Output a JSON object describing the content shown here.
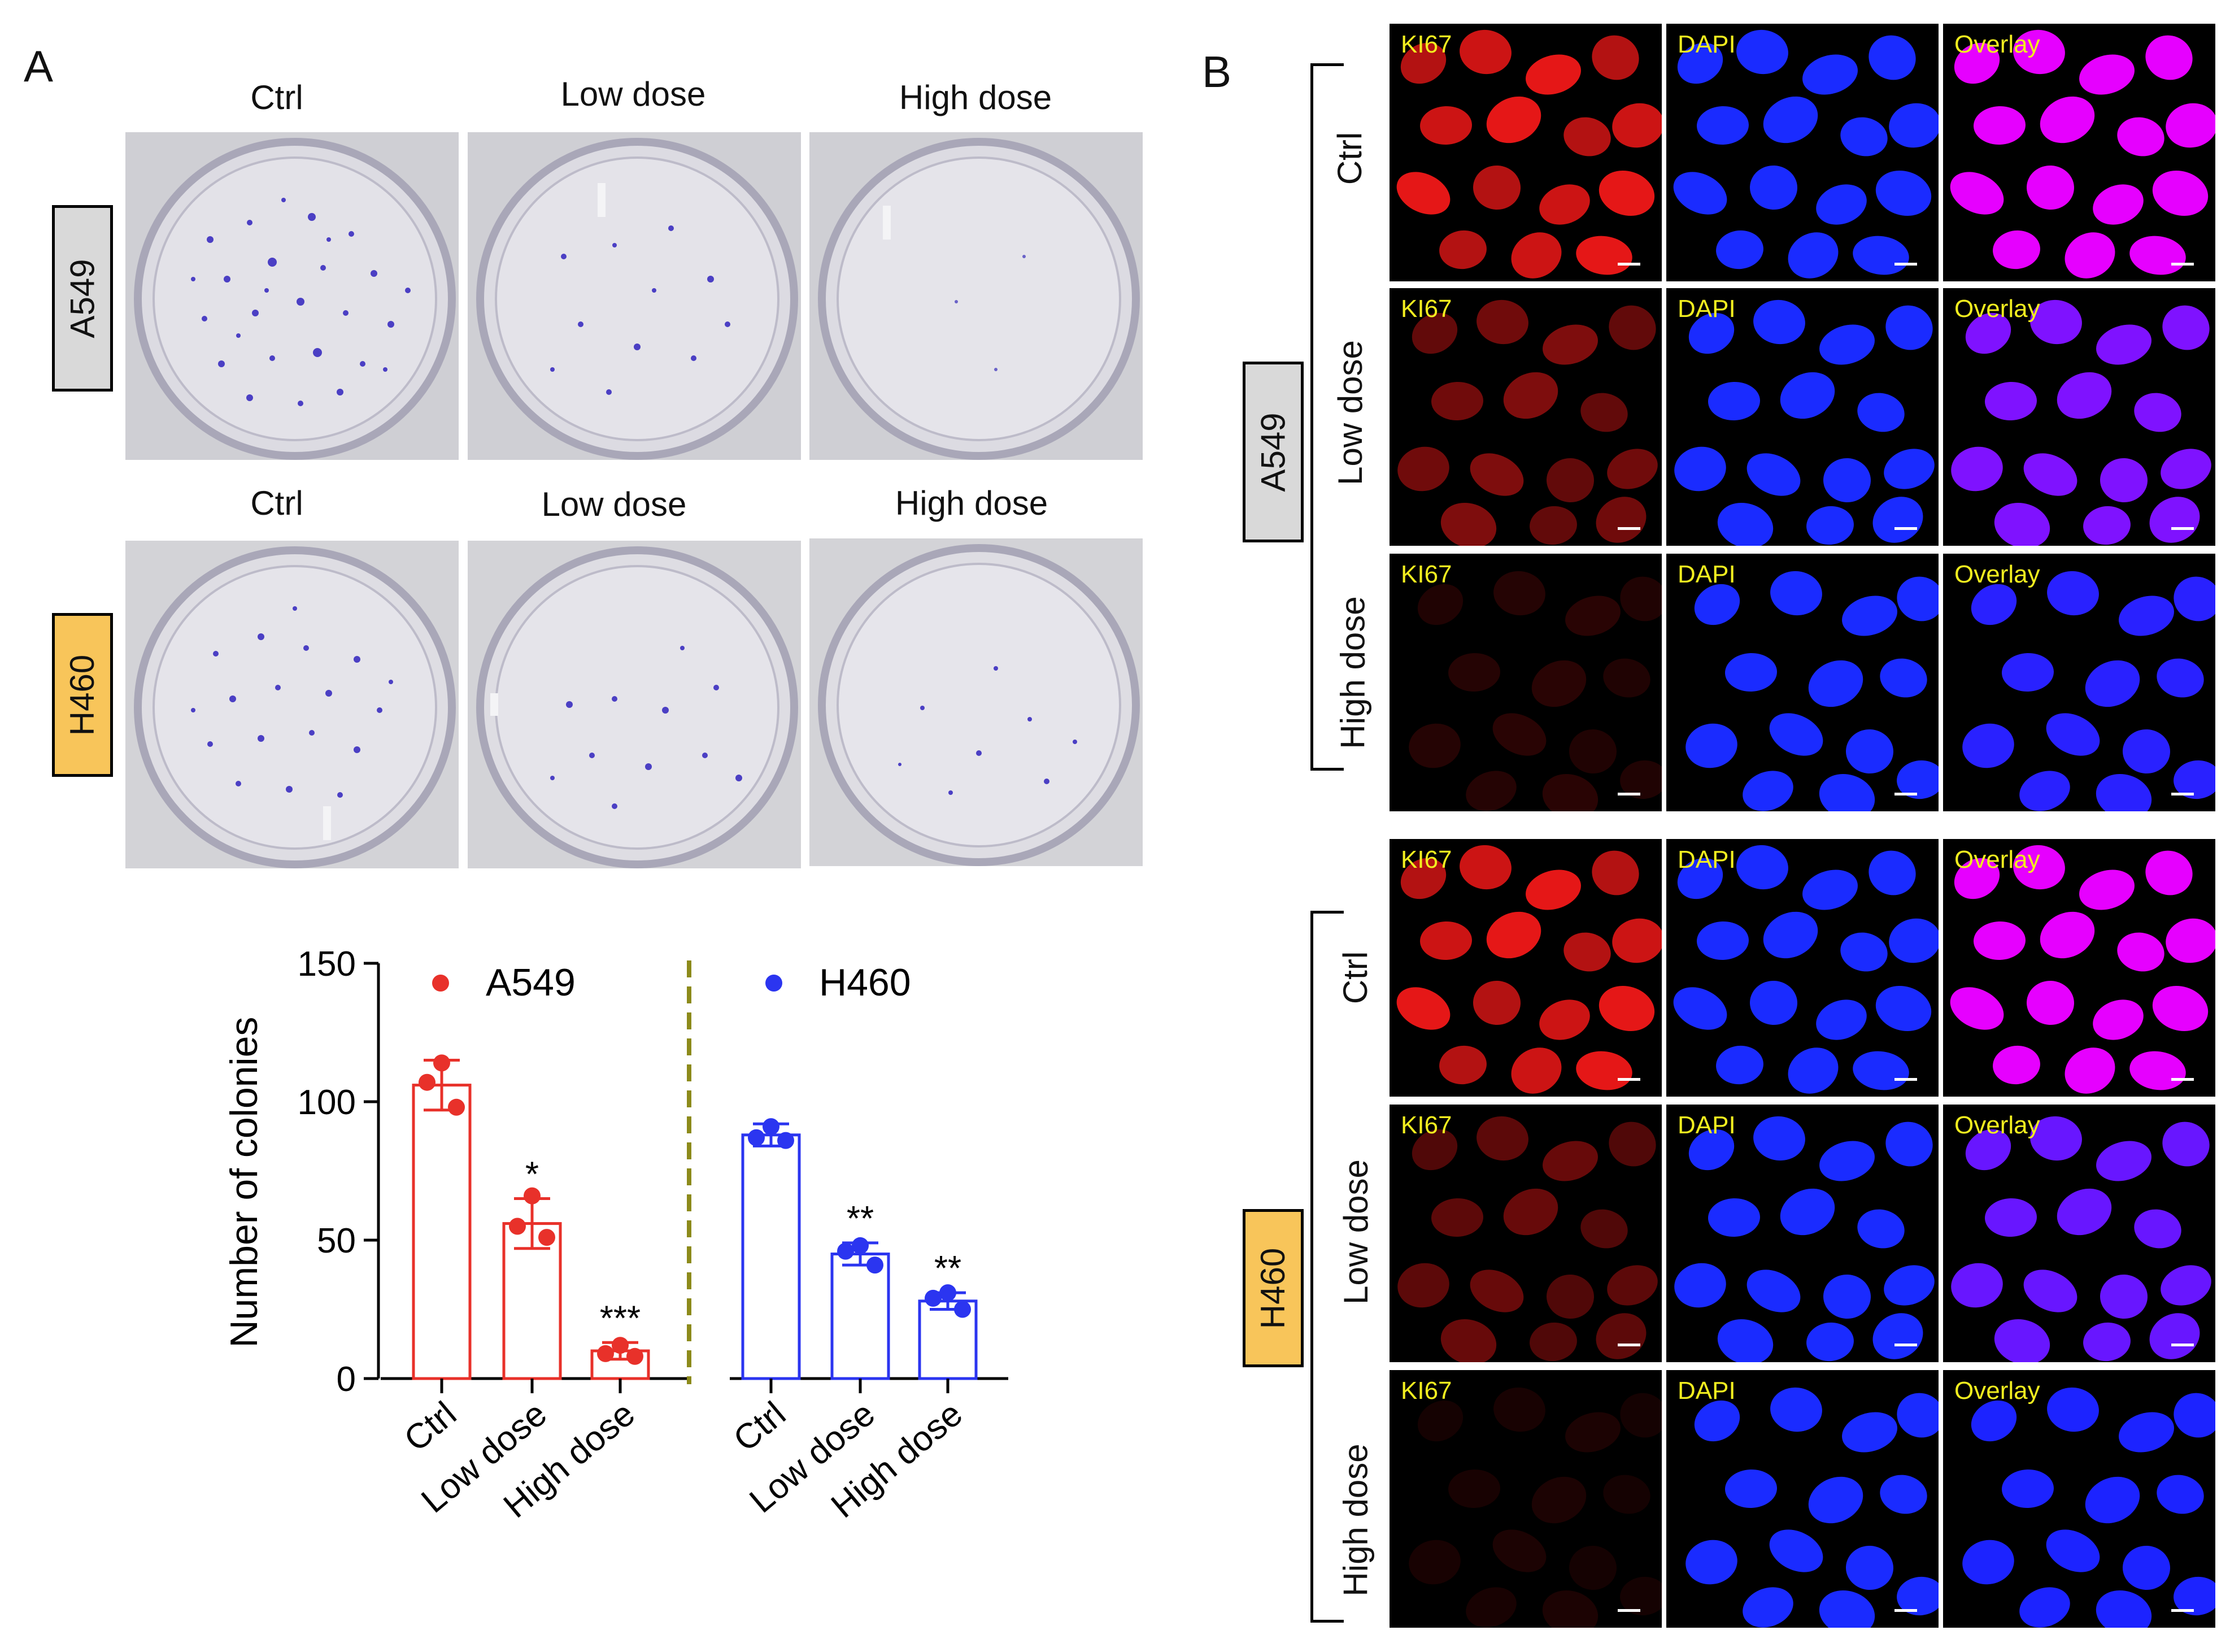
{
  "panel_a": {
    "letter": "A",
    "rows": [
      {
        "cell_line": "A549",
        "tag_color": "#d9d9d9",
        "columns": [
          "Ctrl",
          "Low dose",
          "High dose"
        ]
      },
      {
        "cell_line": "H460",
        "tag_color": "#f8c55a",
        "columns": [
          "Ctrl",
          "Low dose",
          "High dose"
        ]
      }
    ]
  },
  "panel_b": {
    "letter": "B",
    "channels": [
      "KI67",
      "DAPI",
      "Overlay"
    ],
    "groups": [
      {
        "cell_line": "A549",
        "tag_color": "#d9d9d9",
        "rows": [
          "Ctrl",
          "Low dose",
          "High dose"
        ]
      },
      {
        "cell_line": "H460",
        "tag_color": "#f8c55a",
        "rows": [
          "Ctrl",
          "Low dose",
          "High dose"
        ]
      }
    ]
  },
  "chart_data": {
    "type": "bar",
    "xlabel": "",
    "ylabel": "Number of  colonies",
    "ylim": [
      0,
      150
    ],
    "yticks": [
      0,
      50,
      100,
      150
    ],
    "legend_placement": "top",
    "groups": [
      {
        "name": "A549",
        "color": "#e8312a",
        "categories": [
          "Ctrl",
          "Low dose",
          "High dose"
        ],
        "values": [
          106,
          56,
          10
        ],
        "errors": [
          9,
          9,
          3
        ],
        "points": [
          [
            114,
            107,
            98
          ],
          [
            66,
            55,
            51
          ],
          [
            12,
            9,
            8
          ]
        ],
        "significance": [
          "",
          "*",
          "***"
        ]
      },
      {
        "name": "H460",
        "color": "#2b35f0",
        "categories": [
          "Ctrl",
          "Low dose",
          "High dose"
        ],
        "values": [
          88,
          45,
          28
        ],
        "errors": [
          4,
          4,
          3
        ],
        "points": [
          [
            91,
            87,
            86
          ],
          [
            48,
            46,
            41
          ],
          [
            31,
            29,
            25
          ]
        ],
        "significance": [
          "",
          "**",
          "**"
        ]
      }
    ],
    "divider_color": "#8c8a1a"
  }
}
